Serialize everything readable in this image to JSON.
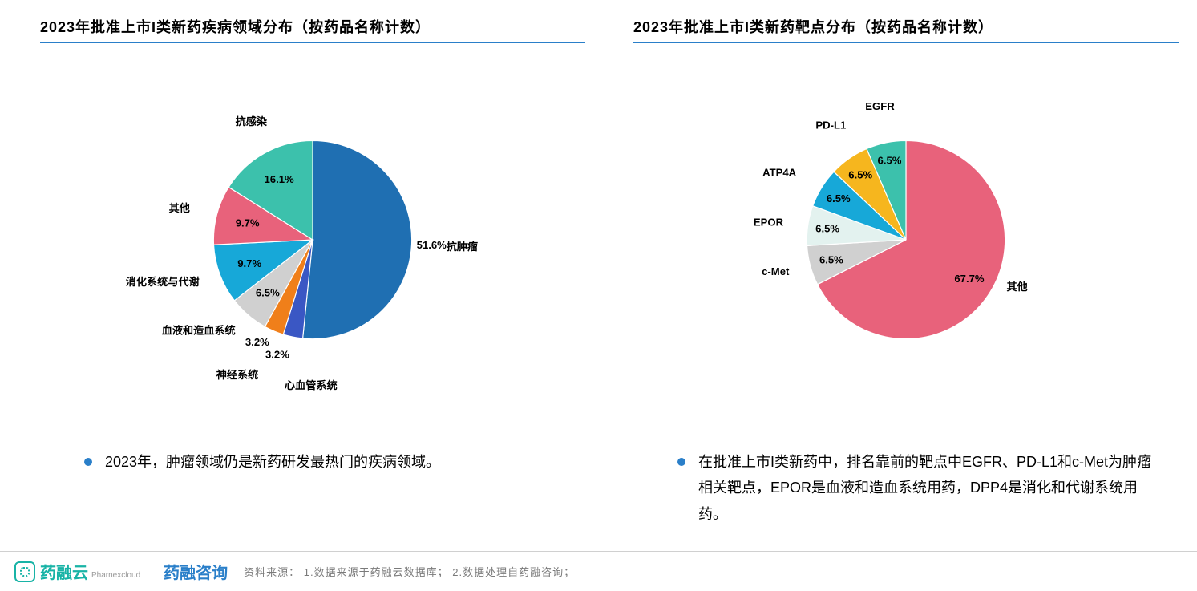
{
  "colors": {
    "accent": "#2a7fc9",
    "bullet": "#2a7fc9"
  },
  "left_chart": {
    "type": "pie",
    "title": "2023年批准上市I类新药疾病领域分布（按药品名称计数）",
    "title_fontsize": 18,
    "start_angle_deg": 0,
    "radius": 160,
    "background_color": "#ffffff",
    "label_fontsize": 17,
    "slices": [
      {
        "category": "抗肿瘤",
        "value": 51.6,
        "pct_label": "51.6%",
        "color": "#1f6fb2",
        "cat_side": "right",
        "label_offset": 1.05,
        "cat_offset": 1.35,
        "cat_anchor": "start"
      },
      {
        "category": "心血管系统",
        "value": 3.2,
        "pct_label": "3.2%",
        "color": "#3a57c4",
        "cat_side": "below",
        "label_offset": 1.18,
        "cat_offset": 1.42,
        "cat_anchor": "start"
      },
      {
        "category": "神经系统",
        "value": 3.2,
        "pct_label": "3.2%",
        "color": "#f07f1a",
        "cat_side": "below",
        "label_offset": 1.12,
        "cat_offset": 1.4,
        "cat_anchor": "end"
      },
      {
        "category": "血液和造血系统",
        "value": 6.5,
        "pct_label": "6.5%",
        "color": "#d0d0d0",
        "cat_side": "left",
        "label_offset": 0.7,
        "cat_offset": 1.2,
        "cat_anchor": "end"
      },
      {
        "category": "消化系统与代谢",
        "value": 9.7,
        "pct_label": "9.7%",
        "color": "#17a8d8",
        "cat_side": "left",
        "label_offset": 0.68,
        "cat_offset": 1.22,
        "cat_anchor": "end"
      },
      {
        "category": "其他",
        "value": 9.7,
        "pct_label": "9.7%",
        "color": "#e8627b",
        "cat_side": "left",
        "label_offset": 0.68,
        "cat_offset": 1.28,
        "cat_anchor": "end"
      },
      {
        "category": "抗感染",
        "value": 16.1,
        "pct_label": "16.1%",
        "color": "#3cc1ac",
        "cat_side": "above",
        "label_offset": 0.7,
        "cat_offset": 1.28,
        "cat_anchor": "middle"
      }
    ],
    "bullet": "2023年，肿瘤领域仍是新药研发最热门的疾病领域。"
  },
  "right_chart": {
    "type": "pie",
    "title": "2023年批准上市I类新药靶点分布（按药品名称计数）",
    "title_fontsize": 18,
    "start_angle_deg": 0,
    "radius": 160,
    "background_color": "#ffffff",
    "label_fontsize": 17,
    "slices": [
      {
        "category": "其他",
        "value": 67.7,
        "pct_label": "67.7%",
        "color": "#e8627b",
        "cat_side": "right",
        "label_offset": 0.75,
        "cat_offset": 1.12,
        "cat_anchor": "start",
        "cat_angle_deg": 115
      },
      {
        "category": "c-Met",
        "value": 6.5,
        "pct_label": "6.5%",
        "color": "#d0d0d0",
        "cat_side": "left",
        "label_offset": 0.78,
        "cat_offset": 1.22,
        "cat_anchor": "end"
      },
      {
        "category": "EPOR",
        "value": 6.5,
        "pct_label": "6.5%",
        "color": "#e3f2ef",
        "cat_side": "left",
        "label_offset": 0.8,
        "cat_offset": 1.25,
        "cat_anchor": "end"
      },
      {
        "category": "ATP4A",
        "value": 6.5,
        "pct_label": "6.5%",
        "color": "#17a8d8",
        "cat_side": "left",
        "label_offset": 0.8,
        "cat_offset": 1.3,
        "cat_anchor": "end"
      },
      {
        "category": "PD-L1",
        "value": 6.5,
        "pct_label": "6.5%",
        "color": "#f6b61e",
        "cat_side": "above",
        "label_offset": 0.8,
        "cat_offset": 1.32,
        "cat_anchor": "middle"
      },
      {
        "category": "EGFR",
        "value": 6.5,
        "pct_label": "6.5%",
        "color": "#3cc1ac",
        "cat_side": "above",
        "label_offset": 0.82,
        "cat_offset": 1.3,
        "cat_anchor": "middle"
      }
    ],
    "bullet": "在批准上市I类新药中，排名靠前的靶点中EGFR、PD-L1和c-Met为肿瘤相关靶点，EPOR是血液和造血系统用药，DPP4是消化和代谢系统用药。"
  },
  "footer": {
    "logo1_text": "药融云",
    "logo1_sub": "Pharnexcloud",
    "logo2_text": "药融咨询",
    "source_label": "资料来源：",
    "source_items": "1.数据来源于药融云数据库；  2.数据处理自药融咨询；"
  }
}
